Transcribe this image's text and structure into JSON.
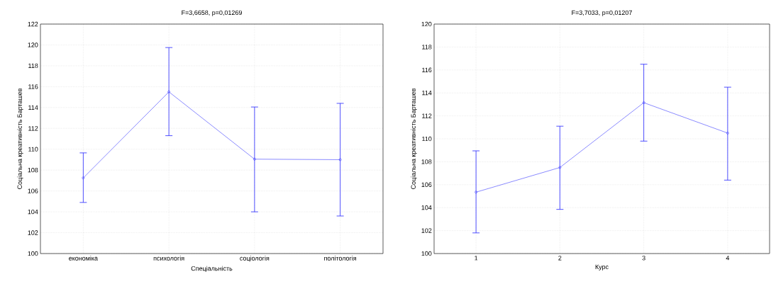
{
  "chart_data": [
    {
      "type": "line",
      "title": "F=3,6658, p=0,01269",
      "xlabel": "Спеціальність",
      "ylabel": "Соціальна креативність Барташев",
      "categories": [
        "економіка",
        "психологія",
        "соціологія",
        "політологія"
      ],
      "values": [
        107.25,
        115.5,
        109.05,
        109.0
      ],
      "errors": [
        [
          104.9,
          109.65
        ],
        [
          111.3,
          119.75
        ],
        [
          104.0,
          114.05
        ],
        [
          103.6,
          114.4
        ]
      ],
      "color": "#3c3cff",
      "marker": "circle",
      "line_style": "solid",
      "grid": true,
      "ylim": [
        100,
        122
      ],
      "yticks": [
        100,
        102,
        104,
        106,
        108,
        110,
        112,
        114,
        116,
        118,
        120,
        122
      ]
    },
    {
      "type": "line",
      "title": "F=3,7033, p=0,01207",
      "xlabel": "Курс",
      "ylabel": "Соціальна креативність Барташев",
      "categories": [
        "1",
        "2",
        "3",
        "4"
      ],
      "values": [
        105.35,
        107.5,
        113.15,
        110.5
      ],
      "errors": [
        [
          101.8,
          108.95
        ],
        [
          103.85,
          111.1
        ],
        [
          109.8,
          116.5
        ],
        [
          106.4,
          114.5
        ]
      ],
      "color": "#3c3cff",
      "marker": "circle",
      "line_style": "solid",
      "grid": true,
      "ylim": [
        100,
        120
      ],
      "yticks": [
        100,
        102,
        104,
        106,
        108,
        110,
        112,
        114,
        116,
        118,
        120
      ]
    }
  ]
}
